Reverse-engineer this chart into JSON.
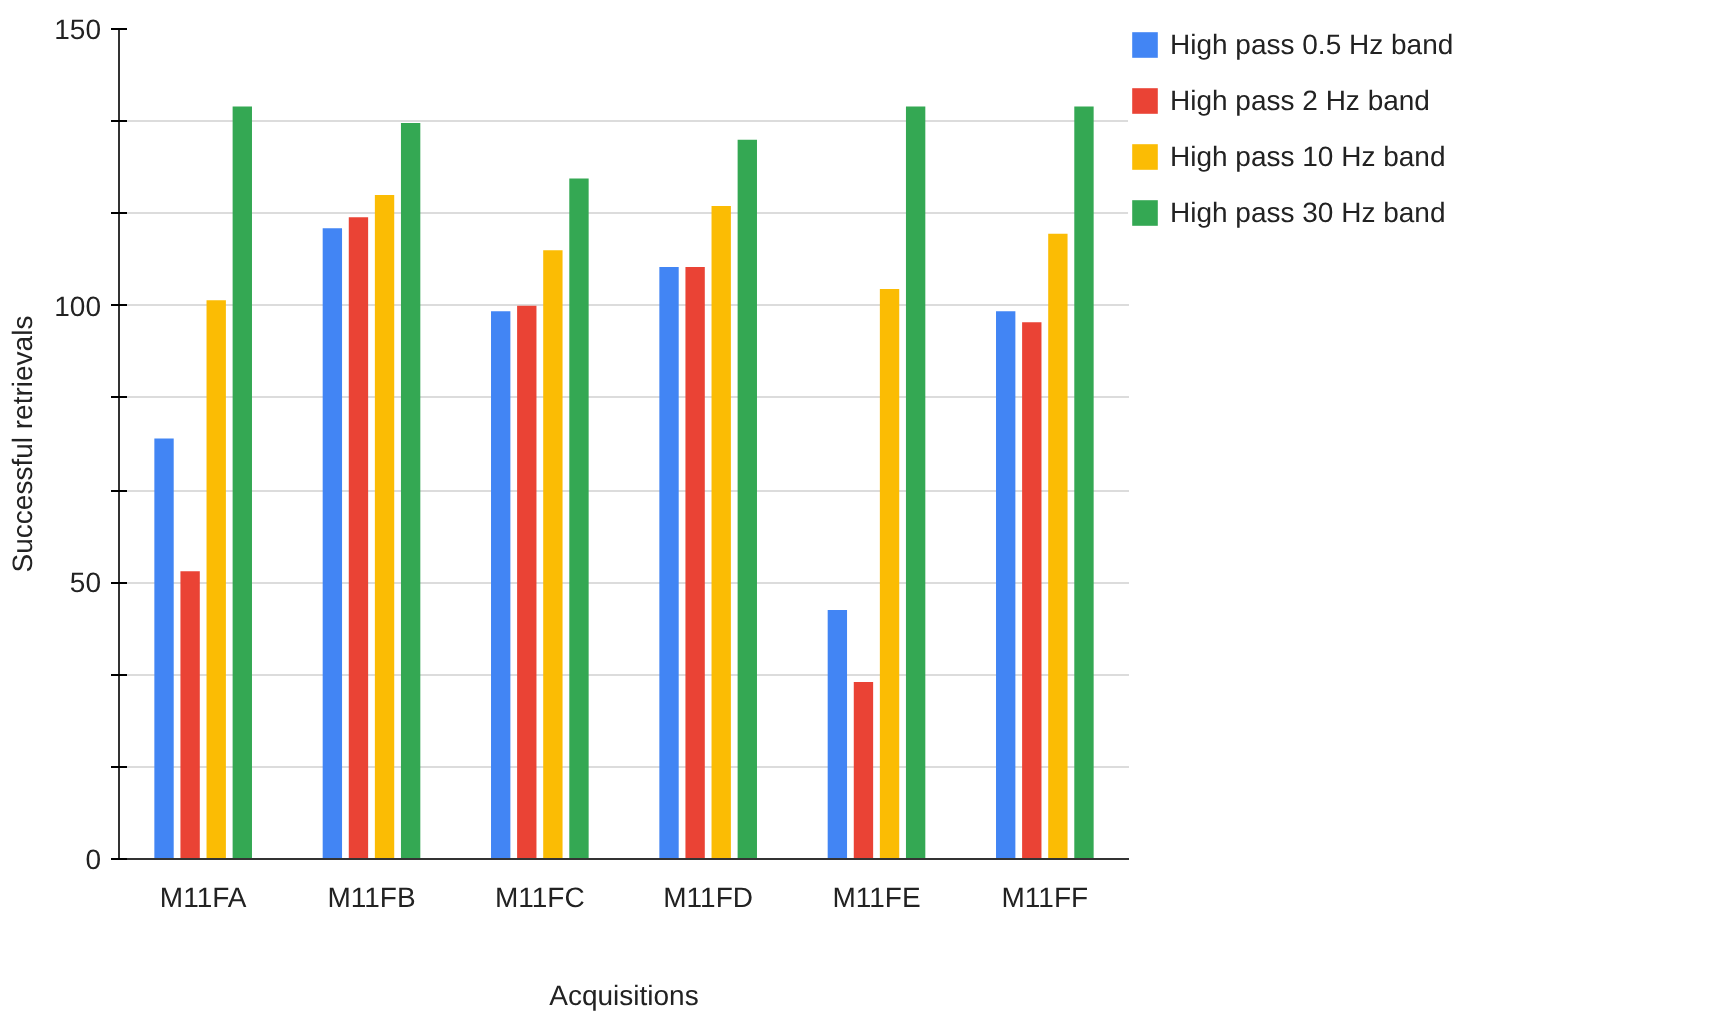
{
  "chart_data": {
    "type": "bar",
    "xlabel": "Acquisitions",
    "ylabel": "Successful retrievals",
    "categories": [
      "M11FA",
      "M11FB",
      "M11FC",
      "M11FD",
      "M11FE",
      "M11FF"
    ],
    "series": [
      {
        "name": "High pass 0.5 Hz band",
        "color": "#4285f4",
        "values": [
          76,
          114,
          99,
          107,
          45,
          99
        ]
      },
      {
        "name": "High pass 2 Hz band",
        "color": "#ea4335",
        "values": [
          52,
          116,
          100,
          107,
          32,
          97
        ]
      },
      {
        "name": "High pass 10 Hz band",
        "color": "#fbbc04",
        "values": [
          101,
          120,
          110,
          118,
          103,
          113
        ]
      },
      {
        "name": "High pass 30 Hz band",
        "color": "#34a853",
        "values": [
          136,
          133,
          123,
          130,
          136,
          136
        ]
      }
    ],
    "ylim": [
      0,
      150
    ],
    "yticks": [
      0,
      {
        "value": 16.67,
        "label": null
      },
      {
        "value": 33.33,
        "label": null
      },
      50,
      {
        "value": 66.67,
        "label": null
      },
      {
        "value": 83.33,
        "label": null
      },
      100,
      {
        "value": 116.67,
        "label": null
      },
      {
        "value": 133.33,
        "label": null
      },
      150
    ],
    "grid": "y",
    "legend": "top right"
  }
}
